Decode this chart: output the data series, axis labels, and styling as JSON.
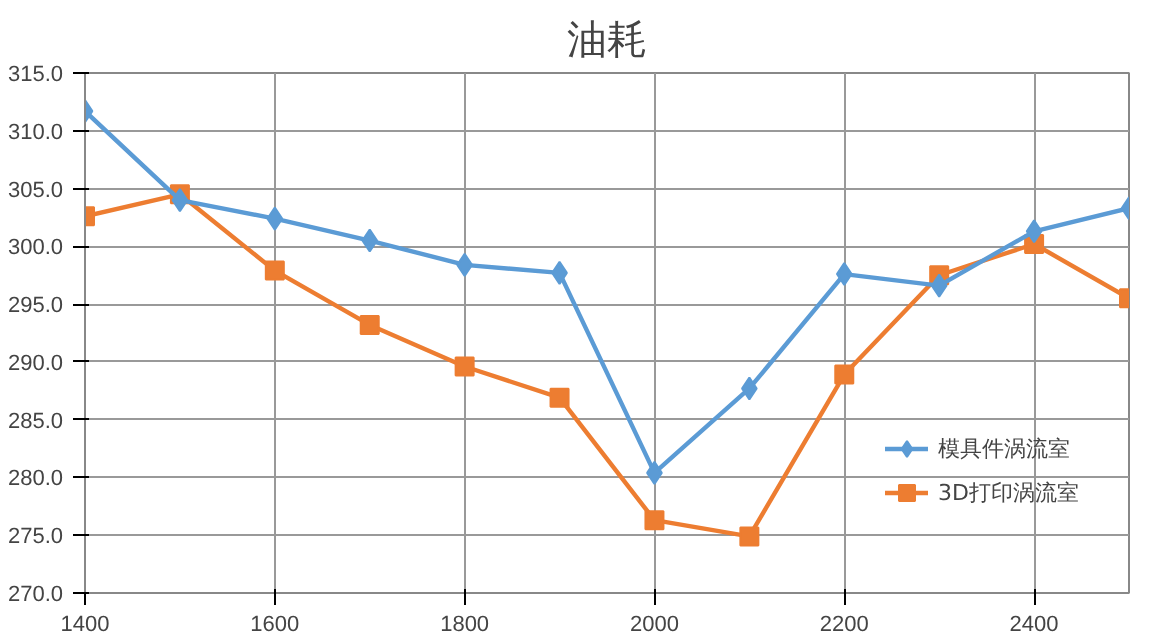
{
  "chart_data": {
    "type": "line",
    "title": "油耗",
    "x": [
      1400,
      1500,
      1600,
      1700,
      1800,
      1900,
      2000,
      2100,
      2200,
      2300,
      2400,
      2500
    ],
    "series": [
      {
        "name": "模具件涡流室",
        "color": "#5b9bd5",
        "marker": "diamond",
        "values": [
          311.7,
          304.0,
          302.4,
          300.5,
          298.4,
          297.7,
          280.4,
          287.7,
          297.6,
          296.6,
          301.3,
          303.3
        ]
      },
      {
        "name": "3D打印涡流室",
        "color": "#ed7d31",
        "marker": "square",
        "values": [
          302.6,
          304.5,
          297.9,
          293.2,
          289.6,
          286.9,
          276.3,
          274.9,
          288.9,
          297.5,
          300.2,
          295.5
        ]
      }
    ],
    "xlim": [
      1400,
      2500
    ],
    "xticks": [
      1400,
      1600,
      1800,
      2000,
      2200,
      2400
    ],
    "ylim": [
      270,
      315
    ],
    "yticks": [
      {
        "value": 270,
        "label": "270.0"
      },
      {
        "value": 275,
        "label": "275.0"
      },
      {
        "value": 280,
        "label": "280.0"
      },
      {
        "value": 285,
        "label": "285.0"
      },
      {
        "value": 290,
        "label": "290.0"
      },
      {
        "value": 295,
        "label": "295.0"
      },
      {
        "value": 300,
        "label": "300.0"
      },
      {
        "value": 305,
        "label": "305.0"
      },
      {
        "value": 310,
        "label": "310.0"
      },
      {
        "value": 315,
        "label": "315.0"
      }
    ],
    "grid": true,
    "legend": "right"
  }
}
